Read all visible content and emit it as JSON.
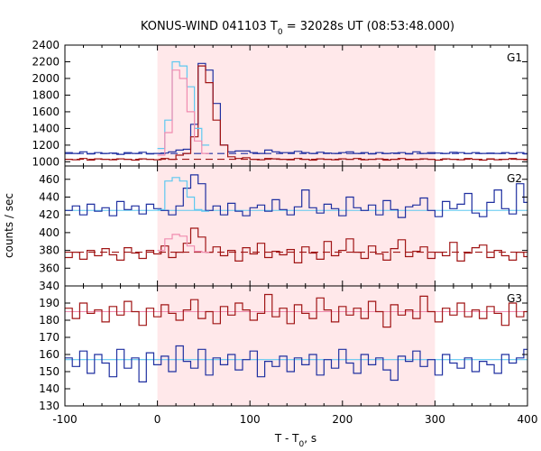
{
  "title": "KONUS-WIND 041103 T",
  "title_sub": "0",
  "title_rest": " = 32028s UT (08:53:48.000)",
  "ylabel": "counts / sec",
  "xlabel_main": "T - T",
  "xlabel_sub": "0",
  "xlabel_rest": ", s",
  "colors": {
    "shade": "#ffe8ea",
    "blue": "#1f2fa0",
    "red": "#a01515",
    "lightblue": "#5fc8f0",
    "pink": "#f08cb0"
  },
  "chart_data": {
    "type": "line",
    "x_axis": {
      "range": [
        -100,
        400
      ],
      "ticks": [
        -100,
        0,
        100,
        200,
        300,
        400
      ],
      "tick_labels": [
        "-100",
        "0",
        "100",
        "200",
        "300",
        "400"
      ]
    },
    "shaded_interval": [
      0,
      300
    ],
    "panels": [
      {
        "name": "G1",
        "ylim": [
          950,
          2400
        ],
        "yticks": [
          1000,
          1200,
          1400,
          1600,
          1800,
          2000,
          2200,
          2400
        ],
        "ytick_labels": [
          "1000",
          "1200",
          "1400",
          "1600",
          "1800",
          "2000",
          "2200",
          "2400"
        ],
        "series": [
          {
            "color": "blue",
            "bin": 8,
            "start": -100,
            "values": [
              1110,
              1100,
              1120,
              1095,
              1110,
              1100,
              1105,
              1090,
              1110,
              1100,
              1115,
              1095,
              1100,
              1105,
              1120,
              1140,
              1150,
              1450,
              2180,
              2100,
              1700,
              1200,
              1120,
              1130,
              1130,
              1110,
              1100,
              1140,
              1120,
              1110,
              1110,
              1125,
              1110,
              1100,
              1115,
              1105,
              1100,
              1110,
              1120,
              1100,
              1110,
              1095,
              1110,
              1100,
              1105,
              1110,
              1095,
              1120,
              1100,
              1110,
              1105,
              1100,
              1115,
              1110,
              1100,
              1110,
              1100,
              1105,
              1100,
              1110,
              1100,
              1110,
              1095
            ]
          },
          {
            "color": "red",
            "bin": 8,
            "start": -100,
            "values": [
              1030,
              1025,
              1040,
              1020,
              1035,
              1030,
              1025,
              1035,
              1030,
              1020,
              1035,
              1030,
              1025,
              1040,
              1030,
              1080,
              1100,
              1300,
              2150,
              1950,
              1500,
              1200,
              1060,
              1040,
              1050,
              1030,
              1025,
              1040,
              1035,
              1030,
              1025,
              1040,
              1030,
              1020,
              1035,
              1030,
              1025,
              1035,
              1030,
              1040,
              1025,
              1030,
              1035,
              1020,
              1030,
              1040,
              1025,
              1030,
              1035,
              1030,
              1020,
              1035,
              1030,
              1025,
              1040,
              1030,
              1020,
              1035,
              1025,
              1030,
              1040,
              1030,
              1025
            ]
          },
          {
            "color": "lightblue",
            "bin": 8,
            "start": 0,
            "values": [
              1160,
              1500,
              2200,
              2150,
              1900,
              1400,
              1200
            ]
          },
          {
            "color": "pink",
            "bin": 8,
            "start": 0,
            "values": [
              1080,
              1350,
              2100,
              2000,
              1600,
              1250,
              1100
            ]
          }
        ],
        "baselines": [
          {
            "color": "blue",
            "value": 1100,
            "style": "dashed"
          },
          {
            "color": "red",
            "value": 1030,
            "style": "dashed"
          }
        ]
      },
      {
        "name": "G2",
        "ylim": [
          340,
          475
        ],
        "yticks": [
          340,
          360,
          380,
          400,
          420,
          440,
          460
        ],
        "ytick_labels": [
          "340",
          "360",
          "380",
          "400",
          "420",
          "440",
          "460"
        ],
        "series": [
          {
            "color": "blue",
            "bin": 8,
            "start": -100,
            "values": [
              425,
              430,
              420,
              432,
              424,
              428,
              419,
              435,
              426,
              430,
              421,
              432,
              427,
              425,
              420,
              430,
              450,
              465,
              455,
              425,
              430,
              420,
              433,
              424,
              419,
              428,
              431,
              424,
              437,
              426,
              420,
              429,
              448,
              428,
              422,
              432,
              427,
              419,
              440,
              428,
              425,
              431,
              420,
              436,
              426,
              417,
              429,
              431,
              439,
              425,
              418,
              435,
              427,
              432,
              444,
              422,
              418,
              434,
              448,
              427,
              421,
              455,
              434
            ]
          },
          {
            "color": "red",
            "bin": 8,
            "start": -100,
            "values": [
              372,
              378,
              370,
              380,
              374,
              382,
              375,
              369,
              383,
              377,
              371,
              380,
              376,
              385,
              372,
              378,
              388,
              405,
              395,
              378,
              384,
              374,
              380,
              368,
              383,
              376,
              388,
              372,
              379,
              375,
              381,
              366,
              384,
              377,
              370,
              390,
              374,
              380,
              393,
              378,
              371,
              385,
              376,
              369,
              382,
              392,
              373,
              379,
              384,
              371,
              378,
              374,
              389,
              368,
              377,
              383,
              386,
              372,
              380,
              374,
              369,
              378,
              373
            ]
          },
          {
            "color": "lightblue",
            "bin": 8,
            "start": 0,
            "values": [
              426,
              458,
              462,
              458,
              440,
              426,
              424
            ]
          },
          {
            "color": "pink",
            "bin": 8,
            "start": 0,
            "values": [
              380,
              393,
              398,
              396,
              385,
              379,
              378
            ]
          }
        ],
        "baselines": [
          {
            "color": "lightblue",
            "value": 425,
            "style": "solid"
          },
          {
            "color": "red",
            "value": 378,
            "style": "dashed"
          }
        ]
      },
      {
        "name": "G3",
        "ylim": [
          130,
          200
        ],
        "yticks": [
          130,
          140,
          150,
          160,
          170,
          180,
          190
        ],
        "ytick_labels": [
          "130",
          "140",
          "150",
          "160",
          "170",
          "180",
          "190"
        ],
        "series": [
          {
            "color": "red",
            "bin": 8,
            "start": -100,
            "values": [
              187,
              181,
              190,
              184,
              186,
              179,
              188,
              183,
              191,
              185,
              177,
              187,
              182,
              189,
              184,
              180,
              186,
              192,
              181,
              185,
              178,
              188,
              183,
              190,
              186,
              180,
              184,
              195,
              182,
              187,
              178,
              189,
              184,
              181,
              193,
              186,
              179,
              188,
              183,
              187,
              181,
              191,
              185,
              176,
              189,
              183,
              186,
              181,
              194,
              185,
              179,
              187,
              183,
              190,
              182,
              186,
              181,
              188,
              184,
              177,
              190,
              182,
              185
            ]
          },
          {
            "color": "blue",
            "bin": 8,
            "start": -100,
            "values": [
              158,
              153,
              162,
              149,
              160,
              155,
              147,
              163,
              152,
              158,
              144,
              161,
              154,
              159,
              150,
              165,
              156,
              152,
              163,
              148,
              158,
              154,
              160,
              151,
              157,
              162,
              147,
              156,
              153,
              159,
              150,
              158,
              154,
              160,
              148,
              157,
              152,
              163,
              155,
              149,
              160,
              154,
              158,
              151,
              145,
              159,
              156,
              162,
              153,
              157,
              148,
              160,
              155,
              152,
              158,
              150,
              156,
              154,
              149,
              160,
              155,
              158,
              163
            ]
          }
        ],
        "baselines": [
          {
            "color": "pink",
            "value": 185,
            "style": "solid"
          },
          {
            "color": "lightblue",
            "value": 157,
            "style": "solid"
          }
        ]
      }
    ]
  }
}
